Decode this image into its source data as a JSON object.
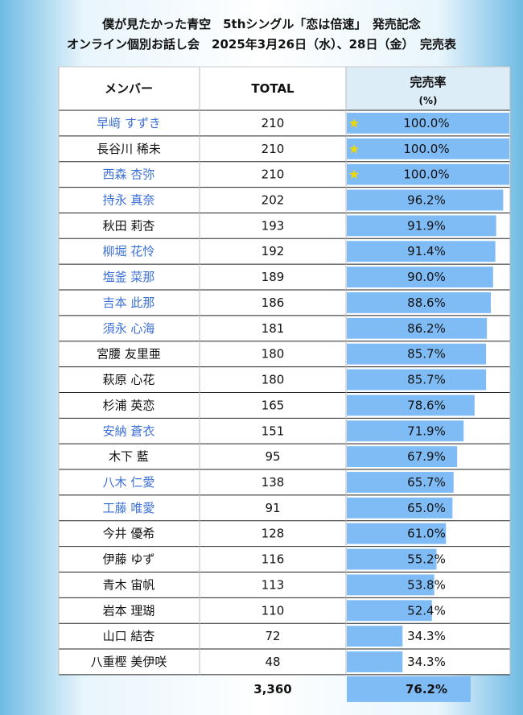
{
  "header": {
    "title_lines": [
      "僕が見たかった青空　5thシングル「恋は倍速」　発売記念",
      "オンライン個別お話し会　2025年3月26日（水）、28日（金）　完売表"
    ]
  },
  "table": {
    "columns": {
      "member": "メンバー",
      "total": "TOTAL",
      "rate": "完売率",
      "rate_unit": "(%)"
    },
    "bar_color": "#7fbcf6",
    "highlight_color": "#3b6fd6",
    "rows": [
      {
        "name": "早﨑 すずき",
        "total": 210,
        "rate": {
          "value": 100.0,
          "label": "100.0%"
        },
        "highlight": true
      },
      {
        "name": "長谷川 稀未",
        "total": 210,
        "rate": {
          "value": 100.0,
          "label": "100.0%"
        },
        "highlight": false
      },
      {
        "name": "西森 杏弥",
        "total": 210,
        "rate": {
          "value": 100.0,
          "label": "100.0%"
        },
        "highlight": true
      },
      {
        "name": "持永 真奈",
        "total": 202,
        "rate": {
          "value": 96.2,
          "label": "96.2%"
        },
        "highlight": true
      },
      {
        "name": "秋田 莉杏",
        "total": 193,
        "rate": {
          "value": 91.9,
          "label": "91.9%"
        },
        "highlight": false
      },
      {
        "name": "柳堀 花怜",
        "total": 192,
        "rate": {
          "value": 91.4,
          "label": "91.4%"
        },
        "highlight": true
      },
      {
        "name": "塩釜 菜那",
        "total": 189,
        "rate": {
          "value": 90.0,
          "label": "90.0%"
        },
        "highlight": true
      },
      {
        "name": "吉本 此那",
        "total": 186,
        "rate": {
          "value": 88.6,
          "label": "88.6%"
        },
        "highlight": true
      },
      {
        "name": "須永 心海",
        "total": 181,
        "rate": {
          "value": 86.2,
          "label": "86.2%"
        },
        "highlight": true
      },
      {
        "name": "宮腰 友里亜",
        "total": 180,
        "rate": {
          "value": 85.7,
          "label": "85.7%"
        },
        "highlight": false
      },
      {
        "name": "萩原 心花",
        "total": 180,
        "rate": {
          "value": 85.7,
          "label": "85.7%"
        },
        "highlight": false
      },
      {
        "name": "杉浦 英恋",
        "total": 165,
        "rate": {
          "value": 78.6,
          "label": "78.6%"
        },
        "highlight": false
      },
      {
        "name": "安納 蒼衣",
        "total": 151,
        "rate": {
          "value": 71.9,
          "label": "71.9%"
        },
        "highlight": true
      },
      {
        "name": "木下 藍",
        "total": 95,
        "rate": {
          "value": 67.9,
          "label": "67.9%"
        },
        "highlight": false
      },
      {
        "name": "八木 仁愛",
        "total": 138,
        "rate": {
          "value": 65.7,
          "label": "65.7%"
        },
        "highlight": true
      },
      {
        "name": "工藤 唯愛",
        "total": 91,
        "rate": {
          "value": 65.0,
          "label": "65.0%"
        },
        "highlight": true
      },
      {
        "name": "今井 優希",
        "total": 128,
        "rate": {
          "value": 61.0,
          "label": "61.0%"
        },
        "highlight": false
      },
      {
        "name": "伊藤 ゆず",
        "total": 116,
        "rate": {
          "value": 55.2,
          "label": "55.2%"
        },
        "highlight": false
      },
      {
        "name": "青木 宙帆",
        "total": 113,
        "rate": {
          "value": 53.8,
          "label": "53.8%"
        },
        "highlight": false
      },
      {
        "name": "岩本 理瑚",
        "total": 110,
        "rate": {
          "value": 52.4,
          "label": "52.4%"
        },
        "highlight": false
      },
      {
        "name": "山口 結杏",
        "total": 72,
        "rate": {
          "value": 34.3,
          "label": "34.3%"
        },
        "highlight": false
      },
      {
        "name": "八重樫 美伊咲",
        "total": 48,
        "rate": {
          "value": 34.3,
          "label": "34.3%"
        },
        "highlight": false
      }
    ],
    "footer": {
      "total": "3,360",
      "rate": {
        "value": 76.2,
        "label": "76.2%"
      }
    }
  }
}
